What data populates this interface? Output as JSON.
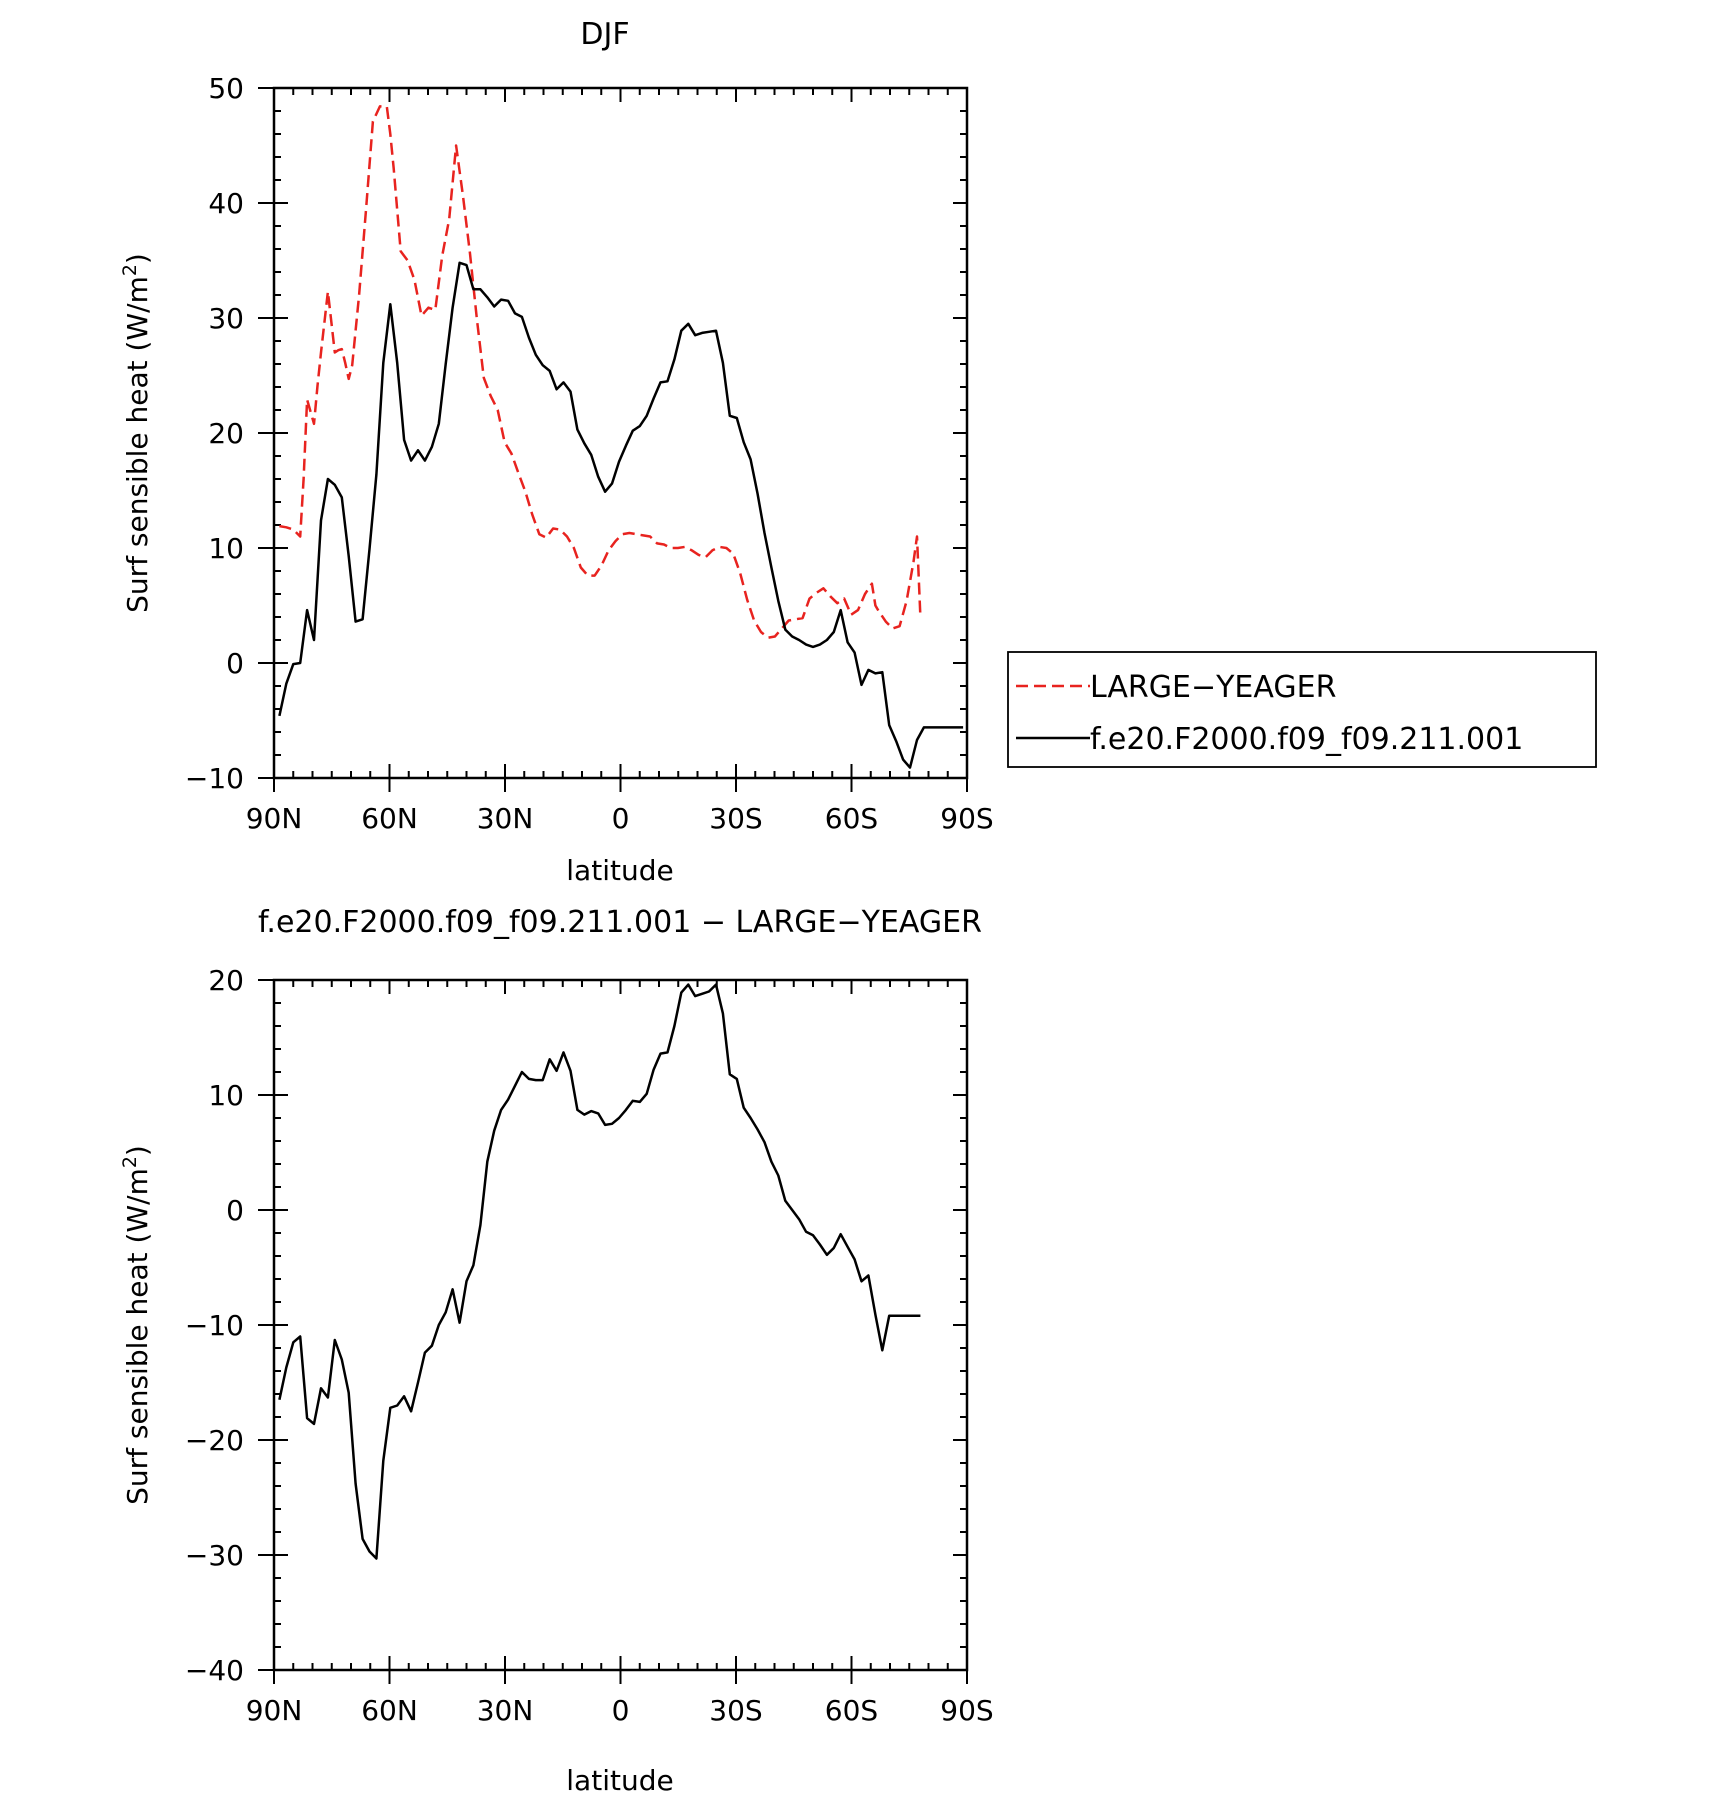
{
  "chart_data": [
    {
      "type": "line",
      "title": "DJF",
      "xlabel": "latitude",
      "ylabel": "Surf sensible heat (W/m²)",
      "ylabel_main": "Surf sensible heat (W/m",
      "ylabel_sup": "2",
      "ylabel_close": ")",
      "xlim": [
        90,
        -90
      ],
      "ylim": [
        -10,
        50
      ],
      "x_ticks": [
        90,
        60,
        30,
        0,
        -30,
        -60,
        -90
      ],
      "x_tick_labels": [
        "90N",
        "60N",
        "30N",
        "0",
        "30S",
        "60S",
        "90S"
      ],
      "y_ticks": [
        -10,
        0,
        10,
        20,
        30,
        40,
        50
      ],
      "y_tick_labels": [
        "−10",
        "0",
        "10",
        "20",
        "30",
        "40",
        "50"
      ],
      "grid": false,
      "legend_position": "right, outside the plot",
      "series": [
        {
          "name": "LARGE−YEAGER",
          "color": "#e8231f",
          "dash": "dashed",
          "x": [
            88.6,
            86.8,
            85.0,
            83.2,
            82.3,
            81.4,
            79.6,
            78.7,
            77.8,
            76.0,
            74.2,
            73.3,
            72.4,
            71.5,
            70.6,
            69.7,
            67.9,
            66.1,
            64.3,
            62.5,
            60.7,
            59.8,
            58.9,
            57.1,
            55.3,
            53.5,
            51.7,
            49.9,
            48.1,
            46.3,
            44.5,
            42.7,
            40.9,
            39.1,
            37.3,
            35.5,
            33.7,
            31.9,
            30.1,
            28.3,
            26.5,
            24.7,
            22.9,
            21.1,
            19.3,
            17.5,
            15.7,
            13.9,
            12.1,
            10.3,
            8.5,
            6.7,
            4.9,
            3.1,
            1.3,
            -0.5,
            -2.3,
            -4.1,
            -5.9,
            -7.7,
            -9.5,
            -11.3,
            -13.1,
            -14.9,
            -16.7,
            -18.5,
            -20.3,
            -22.1,
            -23.9,
            -25.7,
            -27.5,
            -29.3,
            -31.1,
            -32.9,
            -34.7,
            -36.5,
            -38.3,
            -40.1,
            -41.9,
            -43.7,
            -45.5,
            -47.3,
            -49.1,
            -50.9,
            -52.7,
            -54.5,
            -56.3,
            -58.1,
            -59.9,
            -61.7,
            -63.5,
            -65.3,
            -66.2,
            -67.1,
            -68.9,
            -70.7,
            -72.5,
            -74.3,
            -76.1,
            -77.0,
            -77.9
          ],
          "values": [
            11.9,
            11.8,
            11.6,
            11.0,
            16.0,
            22.9,
            20.8,
            24.1,
            27.0,
            32.3,
            27.0,
            27.2,
            27.3,
            26.1,
            24.7,
            25.9,
            32.0,
            39.4,
            47.1,
            48.4,
            48.4,
            46.0,
            43.0,
            35.8,
            35.0,
            33.3,
            30.2,
            30.9,
            30.7,
            35.4,
            38.6,
            45.0,
            40.6,
            35.6,
            29.9,
            24.8,
            23.2,
            22.0,
            19.2,
            18.2,
            16.5,
            14.9,
            12.9,
            11.2,
            10.9,
            11.7,
            11.6,
            11.0,
            10.0,
            8.3,
            7.6,
            7.6,
            8.5,
            9.8,
            10.6,
            11.2,
            11.3,
            11.2,
            11.1,
            11.0,
            10.4,
            10.3,
            10.0,
            10.0,
            10.1,
            9.8,
            9.4,
            9.2,
            9.8,
            10.1,
            10.0,
            9.5,
            7.8,
            5.5,
            3.7,
            2.7,
            2.2,
            2.3,
            3.0,
            3.7,
            3.8,
            3.9,
            5.6,
            6.1,
            6.5,
            5.8,
            5.2,
            5.6,
            4.2,
            4.6,
            6.0,
            6.9,
            5.0,
            4.5,
            3.6,
            3.0,
            3.2,
            5.4,
            8.8,
            11.0,
            4.0
          ]
        },
        {
          "name": "f.e20.F2000.f09_f09.211.001",
          "color": "#000000",
          "dash": "solid",
          "x": [
            88.6,
            86.8,
            85.0,
            83.2,
            81.4,
            79.6,
            77.8,
            76.0,
            74.2,
            72.4,
            70.6,
            68.8,
            67.0,
            65.2,
            63.4,
            61.6,
            59.8,
            58.0,
            56.2,
            54.4,
            52.6,
            50.8,
            49.0,
            47.2,
            45.4,
            43.6,
            41.8,
            40.0,
            38.2,
            36.4,
            34.6,
            32.8,
            31.0,
            29.2,
            27.4,
            25.6,
            23.8,
            22.0,
            20.2,
            18.4,
            16.6,
            14.8,
            13.0,
            11.2,
            9.4,
            7.6,
            5.8,
            4.0,
            2.2,
            0.4,
            -1.4,
            -3.2,
            -5.0,
            -6.8,
            -8.6,
            -10.4,
            -12.2,
            -14.0,
            -15.8,
            -17.6,
            -19.4,
            -21.2,
            -23.0,
            -24.8,
            -26.6,
            -28.4,
            -30.2,
            -32.0,
            -33.8,
            -35.6,
            -37.4,
            -39.2,
            -41.0,
            -42.8,
            -44.6,
            -46.4,
            -48.2,
            -50.0,
            -51.8,
            -53.6,
            -55.4,
            -57.2,
            -59.0,
            -60.8,
            -62.6,
            -64.4,
            -66.2,
            -68.0,
            -69.8,
            -71.6,
            -73.4,
            -75.2,
            -77.0,
            -78.8,
            -80.6,
            -82.4,
            -84.2,
            -86.0,
            -87.8,
            -89.0
          ],
          "values": [
            -4.6,
            -1.8,
            -0.1,
            0.0,
            4.6,
            2.0,
            12.4,
            16.0,
            15.5,
            14.4,
            9.3,
            3.6,
            3.8,
            9.9,
            16.4,
            26.1,
            31.2,
            26.1,
            19.4,
            17.6,
            18.5,
            17.6,
            18.8,
            20.8,
            26.0,
            30.9,
            34.8,
            34.6,
            32.5,
            32.5,
            31.8,
            31.0,
            31.6,
            31.5,
            30.4,
            30.1,
            28.3,
            26.8,
            25.9,
            25.4,
            23.8,
            24.4,
            23.6,
            20.3,
            19.1,
            18.1,
            16.2,
            14.9,
            15.6,
            17.5,
            18.9,
            20.2,
            20.6,
            21.5,
            23.0,
            24.4,
            24.5,
            26.4,
            28.9,
            29.5,
            28.5,
            28.7,
            28.8,
            28.9,
            26.1,
            21.5,
            21.3,
            19.2,
            17.7,
            14.7,
            11.3,
            8.3,
            5.4,
            2.9,
            2.3,
            2.0,
            1.6,
            1.4,
            1.6,
            2.0,
            2.7,
            4.6,
            1.8,
            0.9,
            -1.9,
            -0.6,
            -0.9,
            -0.8,
            -5.4,
            -6.8,
            -8.4,
            -9.1,
            -6.7,
            -5.6,
            -5.6,
            -5.6,
            -5.6,
            -5.6,
            -5.6,
            -5.6
          ]
        }
      ]
    },
    {
      "type": "line",
      "title": "f.e20.F2000.f09_f09.211.001 − LARGE−YEAGER",
      "xlabel": "latitude",
      "ylabel": "Surf sensible heat (W/m²)",
      "ylabel_main": "Surf sensible heat (W/m",
      "ylabel_sup": "2",
      "ylabel_close": ")",
      "xlim": [
        90,
        -90
      ],
      "ylim": [
        -40,
        20
      ],
      "x_ticks": [
        90,
        60,
        30,
        0,
        -30,
        -60,
        -90
      ],
      "x_tick_labels": [
        "90N",
        "60N",
        "30N",
        "0",
        "30S",
        "60S",
        "90S"
      ],
      "y_ticks": [
        -40,
        -30,
        -20,
        -10,
        0,
        10,
        20
      ],
      "y_tick_labels": [
        "−40",
        "−30",
        "−20",
        "−10",
        "0",
        "10",
        "20"
      ],
      "grid": false,
      "series": [
        {
          "color": "#000000",
          "dash": "solid",
          "x": [
            88.6,
            86.8,
            85.0,
            83.2,
            81.4,
            79.6,
            77.8,
            76.0,
            74.2,
            72.4,
            70.6,
            68.8,
            67.0,
            65.2,
            63.4,
            61.6,
            59.8,
            58.0,
            56.2,
            54.4,
            52.6,
            50.8,
            49.0,
            47.2,
            45.4,
            43.6,
            41.8,
            40.0,
            38.2,
            36.4,
            34.6,
            32.8,
            31.0,
            29.2,
            27.4,
            25.6,
            23.8,
            22.0,
            20.2,
            18.4,
            16.6,
            14.8,
            13.0,
            11.2,
            9.4,
            7.6,
            5.8,
            4.0,
            2.2,
            0.4,
            -1.4,
            -3.2,
            -5.0,
            -6.8,
            -8.6,
            -10.4,
            -12.2,
            -14.0,
            -15.8,
            -17.6,
            -19.4,
            -21.2,
            -23.0,
            -24.8,
            -26.6,
            -28.4,
            -30.2,
            -32.0,
            -33.8,
            -35.6,
            -37.4,
            -39.2,
            -41.0,
            -42.8,
            -44.6,
            -46.4,
            -48.2,
            -50.0,
            -51.8,
            -53.6,
            -55.4,
            -57.2,
            -59.0,
            -60.8,
            -62.6,
            -64.4,
            -66.2,
            -68.0,
            -69.8,
            -71.6,
            -73.4,
            -75.2,
            -77.0,
            -77.9
          ],
          "values": [
            -16.5,
            -13.7,
            -11.5,
            -11.0,
            -18.1,
            -18.6,
            -15.5,
            -16.3,
            -11.3,
            -13.0,
            -15.9,
            -23.8,
            -28.6,
            -29.7,
            -30.3,
            -21.8,
            -17.2,
            -17.0,
            -16.2,
            -17.5,
            -15.0,
            -12.4,
            -11.8,
            -10.0,
            -8.9,
            -6.9,
            -9.8,
            -6.2,
            -4.8,
            -1.3,
            4.2,
            6.9,
            8.7,
            9.6,
            10.8,
            12.0,
            11.4,
            11.3,
            11.3,
            13.1,
            12.1,
            13.7,
            12.1,
            8.7,
            8.3,
            8.6,
            8.4,
            7.4,
            7.5,
            8.0,
            8.7,
            9.5,
            9.4,
            10.1,
            12.2,
            13.6,
            13.7,
            16.0,
            18.9,
            19.6,
            18.6,
            18.8,
            19.0,
            19.6,
            17.1,
            11.8,
            11.4,
            8.9,
            8.0,
            7.0,
            5.9,
            4.2,
            3.0,
            0.8,
            0.0,
            -0.8,
            -1.9,
            -2.2,
            -3.0,
            -3.9,
            -3.3,
            -2.1,
            -3.2,
            -4.3,
            -6.2,
            -5.7,
            -9.1,
            -12.2,
            -9.2,
            -9.2,
            -9.2,
            -9.2,
            -9.2,
            -9.2
          ]
        }
      ]
    }
  ]
}
